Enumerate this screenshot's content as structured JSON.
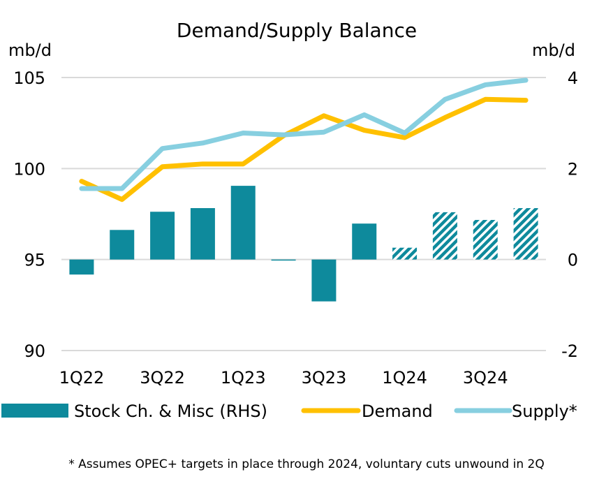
{
  "chart_data": {
    "type": "bar+line",
    "title": "Demand/Supply Balance",
    "left_axis": {
      "label": "mb/d",
      "min": 90,
      "max": 105,
      "ticks": [
        "105",
        "100",
        "95",
        "90"
      ]
    },
    "right_axis": {
      "label": "mb/d",
      "min": -2,
      "max": 4,
      "ticks": [
        "4",
        "2",
        "0",
        "-2"
      ]
    },
    "categories": [
      "1Q22",
      "2Q22",
      "3Q22",
      "4Q22",
      "1Q23",
      "2Q23",
      "3Q23",
      "4Q23",
      "1Q24",
      "2Q24",
      "3Q24",
      "4Q24"
    ],
    "category_labels": [
      "1Q22",
      "",
      "3Q22",
      "",
      "1Q23",
      "",
      "3Q23",
      "",
      "1Q24",
      "",
      "3Q24",
      ""
    ],
    "series": [
      {
        "name": "Stock Ch. & Misc (RHS)",
        "type": "bar",
        "axis": "right",
        "color": "#0e8a9c",
        "values": [
          -0.33,
          0.65,
          1.05,
          1.13,
          1.62,
          -0.02,
          -0.92,
          0.79,
          0.26,
          1.04,
          0.87,
          1.13
        ],
        "hatched_from_index": 8
      },
      {
        "name": "Demand",
        "type": "line",
        "axis": "left",
        "color": "#ffc000",
        "values": [
          99.3,
          98.3,
          100.1,
          100.25,
          100.25,
          101.8,
          102.9,
          102.1,
          101.7,
          102.8,
          103.8,
          103.75
        ]
      },
      {
        "name": "Supply*",
        "type": "line",
        "axis": "left",
        "color": "#87cfe0",
        "values": [
          98.9,
          98.9,
          101.1,
          101.4,
          101.95,
          101.85,
          102.0,
          102.95,
          101.95,
          103.8,
          104.6,
          104.85
        ]
      }
    ],
    "legend_position": "bottom",
    "grid": "horizontal",
    "footnote": "* Assumes OPEC+ targets in place through 2024, voluntary cuts unwound in 2Q"
  }
}
